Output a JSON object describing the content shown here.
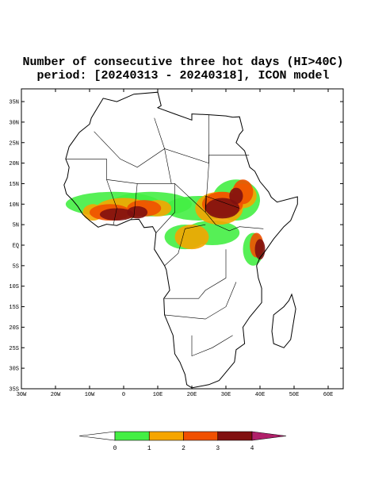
{
  "header": {
    "title": "Number of consecutive three hot days (HI>40C)",
    "subtitle": "period: [20240313 - 20240318], ICON model"
  },
  "map": {
    "lat_labels": [
      "35N",
      "30N",
      "25N",
      "20N",
      "15N",
      "10N",
      "5N",
      "EQ",
      "5S",
      "10S",
      "15S",
      "20S",
      "25S",
      "30S",
      "35S"
    ],
    "lon_labels": [
      "30W",
      "20W",
      "10W",
      "0",
      "10E",
      "20E",
      "30E",
      "40E",
      "50E",
      "60E"
    ]
  },
  "colorbar": {
    "ticks": [
      0,
      1,
      2,
      3,
      4
    ],
    "colors": [
      "#ffffff",
      "#44ee44",
      "#f5a500",
      "#f05000",
      "#801010",
      "#b0206a"
    ]
  }
}
